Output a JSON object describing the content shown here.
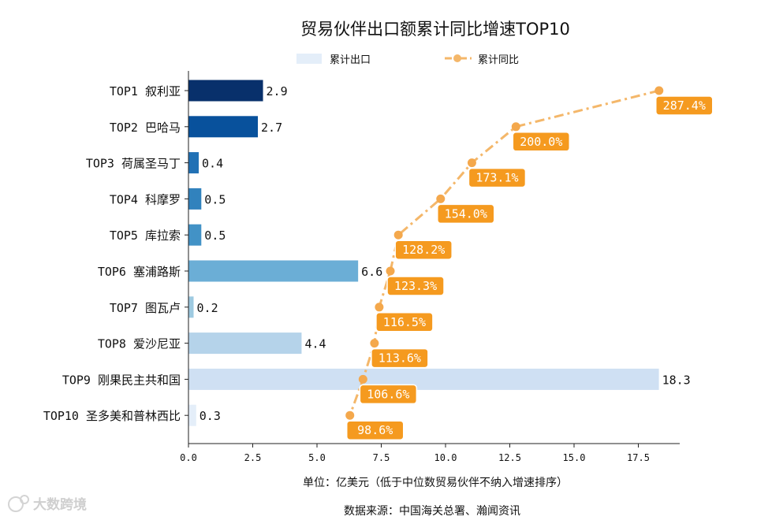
{
  "chart_data": {
    "type": "bar+line",
    "title": "贸易伙伴出口额累计同比增速TOP10",
    "legend": [
      "累计出口",
      "累计同比"
    ],
    "categories": [
      "TOP1 叙利亚",
      "TOP2 巴哈马",
      "TOP3 荷属圣马丁",
      "TOP4 科摩罗",
      "TOP5 库拉索",
      "TOP6 塞浦路斯",
      "TOP7 图瓦卢",
      "TOP8 爱沙尼亚",
      "TOP9 刚果民主共和国",
      "TOP10 圣多美和普林西比"
    ],
    "bar_values": [
      2.9,
      2.7,
      0.4,
      0.5,
      0.5,
      6.6,
      0.2,
      4.4,
      18.3,
      0.3
    ],
    "bar_labels": [
      "2.9",
      "2.7",
      "0.4",
      "0.5",
      "0.5",
      "6.6",
      "0.2",
      "4.4",
      "18.3",
      "0.3"
    ],
    "bar_colors": [
      "#08306b",
      "#08519c",
      "#2171b5",
      "#3182bd",
      "#4292c6",
      "#6baed6",
      "#9ecae1",
      "#b5d3ea",
      "#cfe0f3",
      "#e4eef9"
    ],
    "line_values": [
      287.4,
      200.0,
      173.1,
      154.0,
      128.2,
      123.3,
      116.5,
      113.6,
      106.6,
      98.6
    ],
    "line_labels": [
      "287.4%",
      "200.0%",
      "173.1%",
      "154.0%",
      "128.2%",
      "123.3%",
      "116.5%",
      "113.6%",
      "106.6%",
      "98.6%"
    ],
    "line_scale_note": "line x position ≈ value / 15.7 in bar-axis units",
    "line_color": "#f4b76a",
    "label_box_color": "#f59a1f",
    "xlim": [
      0,
      19.2
    ],
    "xticks": [
      0.0,
      2.5,
      5.0,
      7.5,
      10.0,
      12.5,
      15.0,
      17.5
    ],
    "xtick_labels": [
      "0.0",
      "2.5",
      "5.0",
      "7.5",
      "10.0",
      "12.5",
      "15.0",
      "17.5"
    ],
    "xlabel": "单位：亿美元（低于中位数贸易伙伴不纳入增速排序）",
    "source": "数据来源：中国海关总署、瀚闻资讯"
  },
  "watermark": "大数跨境"
}
